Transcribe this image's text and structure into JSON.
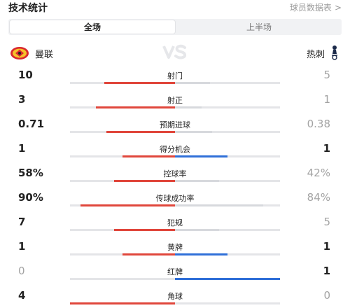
{
  "header": {
    "title": "技术统计",
    "detail_link": "球员数据表",
    "detail_chevron": ">"
  },
  "tabs": [
    {
      "label": "全场",
      "active": true
    },
    {
      "label": "上半场",
      "active": false
    }
  ],
  "teams": {
    "home": {
      "name": "曼联",
      "crest_icon": "manchester-united-crest-icon"
    },
    "vs_icon": "vs-icon",
    "away": {
      "name": "热刺",
      "crest_icon": "tottenham-crest-icon"
    }
  },
  "colors": {
    "home_bar": "#e0463b",
    "away_bar_leading": "#2f6fd8",
    "away_bar": "#d7d9dd",
    "track": "#e4e5e8"
  },
  "stats": [
    {
      "label": "射门",
      "home": "10",
      "away": "5",
      "home_share": 0.67,
      "away_share": 0.33,
      "away_leading": false
    },
    {
      "label": "射正",
      "home": "3",
      "away": "1",
      "home_share": 0.75,
      "away_share": 0.25,
      "away_leading": false
    },
    {
      "label": "预期进球",
      "home": "0.71",
      "away": "0.38",
      "home_share": 0.65,
      "away_share": 0.35,
      "away_leading": false
    },
    {
      "label": "得分机会",
      "home": "1",
      "away": "1",
      "home_share": 0.5,
      "away_share": 0.5,
      "away_leading": true
    },
    {
      "label": "控球率",
      "home": "58%",
      "away": "42%",
      "home_share": 0.58,
      "away_share": 0.42,
      "away_leading": false
    },
    {
      "label": "传球成功率",
      "home": "90%",
      "away": "84%",
      "home_share": 0.9,
      "away_share": 0.84,
      "away_leading": false
    },
    {
      "label": "犯规",
      "home": "7",
      "away": "5",
      "home_share": 0.58,
      "away_share": 0.42,
      "away_leading": false
    },
    {
      "label": "黄牌",
      "home": "1",
      "away": "1",
      "home_share": 0.5,
      "away_share": 0.5,
      "away_leading": true
    },
    {
      "label": "红牌",
      "home": "0",
      "away": "1",
      "home_share": 0.0,
      "away_share": 1.0,
      "away_leading": true
    },
    {
      "label": "角球",
      "home": "4",
      "away": "0",
      "home_share": 1.0,
      "away_share": 0.0,
      "away_leading": false
    }
  ]
}
